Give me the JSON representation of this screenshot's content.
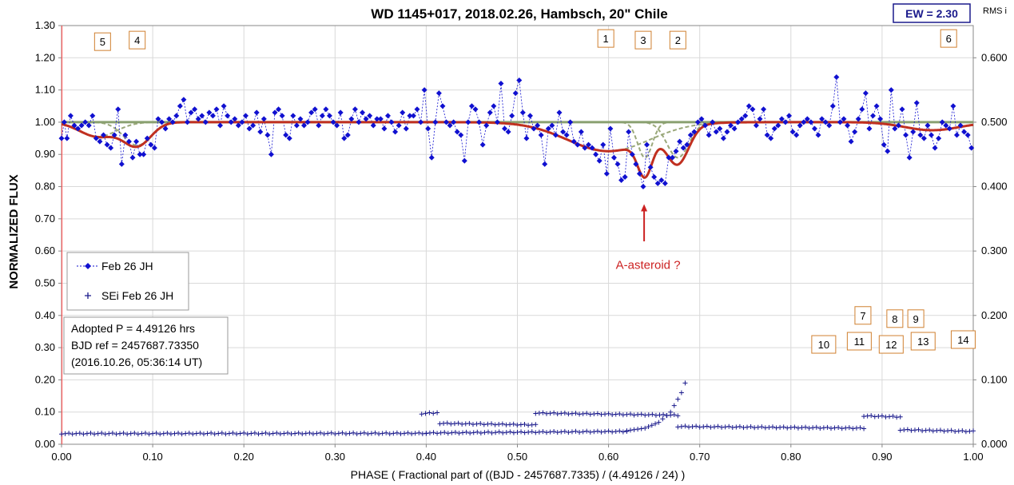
{
  "chart_data": {
    "type": "scatter",
    "title": "WD 1145+017, 2018.02.26, Hambsch, 20\" Chile",
    "ew_label": "EW =  2.30",
    "rms_label": "RMS i",
    "xlabel": "PHASE  ( Fractional part of ((BJD - 2457687.7335)  / (4.49126  / 24) )",
    "ylabel": "NORMALIZED  FLUX",
    "xlim": [
      0,
      1
    ],
    "ylim": [
      0,
      1.3
    ],
    "y2lim": [
      0,
      0.65
    ],
    "x_ticks": [
      "0.00",
      "0.10",
      "0.20",
      "0.30",
      "0.40",
      "0.50",
      "0.60",
      "0.70",
      "0.80",
      "0.90",
      "1.00"
    ],
    "y_ticks": [
      "0.00",
      "0.10",
      "0.20",
      "0.30",
      "0.40",
      "0.50",
      "0.60",
      "0.70",
      "0.80",
      "0.90",
      "1.00",
      "1.10",
      "1.20",
      "1.30"
    ],
    "y2_ticks": [
      "0.000",
      "0.100",
      "0.200",
      "0.300",
      "0.400",
      "0.500",
      "0.600"
    ],
    "grid": true,
    "legend_placement": "middle-left",
    "legend": [
      {
        "name": "Feb 26 JH",
        "marker": "diamond",
        "color": "#1010d0"
      },
      {
        "name": "SEi Feb 26 JH",
        "marker": "plus",
        "color": "#1a1a8c"
      }
    ],
    "info_lines": [
      "Adopted P = 4.49126 hrs",
      "BJD ref = 2457687.73350",
      "(2016.10.26, 05:36:14 UT)"
    ],
    "annotation": {
      "text": "A-asteroid ?",
      "x": 0.639,
      "y": 0.8,
      "color": "#cc2222"
    },
    "dip_labels": [
      {
        "label": "5",
        "x": 0.045,
        "y": 1.25
      },
      {
        "label": "4",
        "x": 0.083,
        "y": 1.255
      },
      {
        "label": "1",
        "x": 0.597,
        "y": 1.26
      },
      {
        "label": "3",
        "x": 0.638,
        "y": 1.255
      },
      {
        "label": "2",
        "x": 0.676,
        "y": 1.255
      },
      {
        "label": "6",
        "x": 0.973,
        "y": 1.26
      },
      {
        "label": "7",
        "x": 0.879,
        "y": 0.4
      },
      {
        "label": "8",
        "x": 0.914,
        "y": 0.39
      },
      {
        "label": "9",
        "x": 0.937,
        "y": 0.39
      },
      {
        "label": "10",
        "x": 0.836,
        "y": 0.31
      },
      {
        "label": "11",
        "x": 0.875,
        "y": 0.32
      },
      {
        "label": "12",
        "x": 0.91,
        "y": 0.31
      },
      {
        "label": "13",
        "x": 0.945,
        "y": 0.32
      },
      {
        "label": "14",
        "x": 0.989,
        "y": 0.325
      }
    ],
    "colors": {
      "flux": "#1010d0",
      "sei": "#1a1a8c",
      "model": "#c03020",
      "components": "#9aa87a",
      "baseline": "#8aa070",
      "annotation": "#cc2222",
      "label_border": "#d08030"
    },
    "flux_series": {
      "name": "Feb 26 JH",
      "points": [
        [
          0.0,
          0.95
        ],
        [
          0.003,
          1.0
        ],
        [
          0.006,
          0.95
        ],
        [
          0.01,
          1.02
        ],
        [
          0.014,
          0.99
        ],
        [
          0.018,
          0.98
        ],
        [
          0.022,
          0.99
        ],
        [
          0.026,
          1.0
        ],
        [
          0.03,
          0.99
        ],
        [
          0.034,
          1.02
        ],
        [
          0.038,
          0.95
        ],
        [
          0.042,
          0.94
        ],
        [
          0.046,
          0.96
        ],
        [
          0.05,
          0.93
        ],
        [
          0.054,
          0.92
        ],
        [
          0.058,
          0.96
        ],
        [
          0.062,
          1.04
        ],
        [
          0.066,
          0.87
        ],
        [
          0.07,
          0.96
        ],
        [
          0.074,
          0.94
        ],
        [
          0.078,
          0.89
        ],
        [
          0.082,
          0.94
        ],
        [
          0.086,
          0.9
        ],
        [
          0.09,
          0.9
        ],
        [
          0.094,
          0.95
        ],
        [
          0.098,
          0.93
        ],
        [
          0.102,
          0.92
        ],
        [
          0.106,
          1.01
        ],
        [
          0.11,
          1.0
        ],
        [
          0.114,
          0.98
        ],
        [
          0.118,
          1.01
        ],
        [
          0.122,
          1.0
        ],
        [
          0.126,
          1.02
        ],
        [
          0.13,
          1.05
        ],
        [
          0.134,
          1.07
        ],
        [
          0.138,
          1.0
        ],
        [
          0.142,
          1.03
        ],
        [
          0.146,
          1.04
        ],
        [
          0.15,
          1.01
        ],
        [
          0.154,
          1.02
        ],
        [
          0.158,
          1.0
        ],
        [
          0.162,
          1.03
        ],
        [
          0.166,
          1.02
        ],
        [
          0.17,
          1.04
        ],
        [
          0.174,
          0.99
        ],
        [
          0.178,
          1.05
        ],
        [
          0.182,
          1.02
        ],
        [
          0.186,
          1.0
        ],
        [
          0.19,
          1.01
        ],
        [
          0.194,
          0.99
        ],
        [
          0.198,
          1.0
        ],
        [
          0.202,
          1.02
        ],
        [
          0.206,
          0.98
        ],
        [
          0.21,
          0.99
        ],
        [
          0.214,
          1.03
        ],
        [
          0.218,
          0.97
        ],
        [
          0.222,
          1.01
        ],
        [
          0.226,
          0.96
        ],
        [
          0.23,
          0.9
        ],
        [
          0.234,
          1.03
        ],
        [
          0.238,
          1.04
        ],
        [
          0.242,
          1.02
        ],
        [
          0.246,
          0.96
        ],
        [
          0.25,
          0.95
        ],
        [
          0.254,
          1.02
        ],
        [
          0.258,
          0.99
        ],
        [
          0.262,
          1.01
        ],
        [
          0.266,
          0.99
        ],
        [
          0.27,
          1.0
        ],
        [
          0.274,
          1.03
        ],
        [
          0.278,
          1.04
        ],
        [
          0.282,
          0.99
        ],
        [
          0.286,
          1.02
        ],
        [
          0.29,
          1.04
        ],
        [
          0.294,
          1.02
        ],
        [
          0.298,
          1.0
        ],
        [
          0.302,
          0.99
        ],
        [
          0.306,
          1.03
        ],
        [
          0.31,
          0.95
        ],
        [
          0.314,
          0.96
        ],
        [
          0.318,
          1.01
        ],
        [
          0.322,
          1.04
        ],
        [
          0.326,
          1.0
        ],
        [
          0.33,
          1.03
        ],
        [
          0.334,
          1.01
        ],
        [
          0.338,
          1.02
        ],
        [
          0.342,
          0.99
        ],
        [
          0.346,
          1.01
        ],
        [
          0.35,
          1.01
        ],
        [
          0.354,
          0.98
        ],
        [
          0.358,
          1.02
        ],
        [
          0.362,
          1.0
        ],
        [
          0.366,
          0.97
        ],
        [
          0.37,
          0.99
        ],
        [
          0.374,
          1.03
        ],
        [
          0.378,
          0.98
        ],
        [
          0.382,
          1.02
        ],
        [
          0.386,
          1.02
        ],
        [
          0.39,
          1.04
        ],
        [
          0.394,
          1.0
        ],
        [
          0.398,
          1.1
        ],
        [
          0.402,
          0.98
        ],
        [
          0.406,
          0.89
        ],
        [
          0.41,
          1.0
        ],
        [
          0.414,
          1.09
        ],
        [
          0.418,
          1.05
        ],
        [
          0.422,
          1.0
        ],
        [
          0.426,
          0.99
        ],
        [
          0.43,
          1.0
        ],
        [
          0.434,
          0.97
        ],
        [
          0.438,
          0.96
        ],
        [
          0.442,
          0.88
        ],
        [
          0.446,
          1.0
        ],
        [
          0.45,
          1.05
        ],
        [
          0.454,
          1.04
        ],
        [
          0.458,
          1.0
        ],
        [
          0.462,
          0.93
        ],
        [
          0.466,
          0.99
        ],
        [
          0.47,
          1.03
        ],
        [
          0.474,
          1.05
        ],
        [
          0.478,
          1.0
        ],
        [
          0.482,
          1.12
        ],
        [
          0.486,
          0.98
        ],
        [
          0.49,
          0.97
        ],
        [
          0.494,
          1.02
        ],
        [
          0.498,
          1.09
        ],
        [
          0.502,
          1.13
        ],
        [
          0.506,
          1.03
        ],
        [
          0.51,
          0.95
        ],
        [
          0.514,
          1.02
        ],
        [
          0.518,
          0.98
        ],
        [
          0.522,
          0.99
        ],
        [
          0.526,
          0.96
        ],
        [
          0.53,
          0.87
        ],
        [
          0.534,
          0.98
        ],
        [
          0.538,
          0.99
        ],
        [
          0.542,
          0.96
        ],
        [
          0.546,
          1.03
        ],
        [
          0.55,
          0.97
        ],
        [
          0.554,
          0.96
        ],
        [
          0.558,
          1.0
        ],
        [
          0.562,
          0.94
        ],
        [
          0.566,
          0.93
        ],
        [
          0.57,
          0.97
        ],
        [
          0.574,
          0.92
        ],
        [
          0.578,
          0.93
        ],
        [
          0.582,
          0.92
        ],
        [
          0.586,
          0.9
        ],
        [
          0.59,
          0.88
        ],
        [
          0.594,
          0.93
        ],
        [
          0.598,
          0.84
        ],
        [
          0.602,
          0.98
        ],
        [
          0.606,
          0.89
        ],
        [
          0.61,
          0.87
        ],
        [
          0.614,
          0.82
        ],
        [
          0.618,
          0.83
        ],
        [
          0.622,
          0.97
        ],
        [
          0.626,
          0.9
        ],
        [
          0.63,
          0.87
        ],
        [
          0.634,
          0.84
        ],
        [
          0.638,
          0.8
        ],
        [
          0.642,
          0.93
        ],
        [
          0.646,
          0.86
        ],
        [
          0.65,
          0.83
        ],
        [
          0.654,
          0.81
        ],
        [
          0.658,
          0.82
        ],
        [
          0.662,
          0.81
        ],
        [
          0.666,
          0.89
        ],
        [
          0.67,
          0.89
        ],
        [
          0.674,
          0.91
        ],
        [
          0.678,
          0.94
        ],
        [
          0.682,
          0.92
        ],
        [
          0.686,
          0.93
        ],
        [
          0.69,
          0.96
        ],
        [
          0.694,
          0.97
        ],
        [
          0.698,
          1.0
        ],
        [
          0.702,
          1.01
        ],
        [
          0.706,
          0.99
        ],
        [
          0.71,
          0.96
        ],
        [
          0.714,
          1.0
        ],
        [
          0.718,
          0.97
        ],
        [
          0.722,
          0.98
        ],
        [
          0.726,
          0.95
        ],
        [
          0.73,
          0.97
        ],
        [
          0.734,
          0.99
        ],
        [
          0.738,
          0.98
        ],
        [
          0.742,
          1.0
        ],
        [
          0.746,
          1.01
        ],
        [
          0.75,
          1.02
        ],
        [
          0.754,
          1.05
        ],
        [
          0.758,
          1.04
        ],
        [
          0.762,
          0.99
        ],
        [
          0.766,
          1.01
        ],
        [
          0.77,
          1.04
        ],
        [
          0.774,
          0.96
        ],
        [
          0.778,
          0.95
        ],
        [
          0.782,
          0.98
        ],
        [
          0.786,
          0.99
        ],
        [
          0.79,
          1.01
        ],
        [
          0.794,
          1.0
        ],
        [
          0.798,
          1.02
        ],
        [
          0.802,
          0.97
        ],
        [
          0.806,
          0.96
        ],
        [
          0.81,
          0.99
        ],
        [
          0.814,
          1.0
        ],
        [
          0.818,
          1.01
        ],
        [
          0.822,
          1.0
        ],
        [
          0.826,
          0.98
        ],
        [
          0.83,
          0.96
        ],
        [
          0.834,
          1.01
        ],
        [
          0.838,
          1.0
        ],
        [
          0.842,
          0.99
        ],
        [
          0.846,
          1.05
        ],
        [
          0.85,
          1.14
        ],
        [
          0.854,
          1.0
        ],
        [
          0.858,
          1.01
        ],
        [
          0.862,
          0.99
        ],
        [
          0.866,
          0.94
        ],
        [
          0.87,
          0.97
        ],
        [
          0.874,
          1.01
        ],
        [
          0.878,
          1.04
        ],
        [
          0.882,
          1.09
        ],
        [
          0.886,
          0.98
        ],
        [
          0.89,
          1.02
        ],
        [
          0.894,
          1.05
        ],
        [
          0.898,
          1.01
        ],
        [
          0.902,
          0.93
        ],
        [
          0.906,
          0.91
        ],
        [
          0.91,
          1.1
        ],
        [
          0.914,
          0.98
        ],
        [
          0.918,
          0.99
        ],
        [
          0.922,
          1.04
        ],
        [
          0.926,
          0.96
        ],
        [
          0.93,
          0.89
        ],
        [
          0.934,
          0.97
        ],
        [
          0.938,
          1.06
        ],
        [
          0.942,
          0.96
        ],
        [
          0.946,
          0.95
        ],
        [
          0.95,
          0.99
        ],
        [
          0.954,
          0.96
        ],
        [
          0.958,
          0.92
        ],
        [
          0.962,
          0.95
        ],
        [
          0.966,
          1.0
        ],
        [
          0.97,
          0.99
        ],
        [
          0.974,
          0.98
        ],
        [
          0.978,
          1.05
        ],
        [
          0.982,
          0.96
        ],
        [
          0.986,
          0.99
        ],
        [
          0.99,
          0.97
        ],
        [
          0.994,
          0.96
        ],
        [
          0.998,
          0.92
        ]
      ]
    },
    "sei_series": {
      "name": "SEi Feb 26 JH",
      "segments": [
        {
          "x0": 0.0,
          "x1": 0.4,
          "y0": 0.033,
          "y1": 0.034
        },
        {
          "x0": 0.4,
          "x1": 0.62,
          "y0": 0.035,
          "y1": 0.04
        },
        {
          "x0": 0.62,
          "x1": 0.684,
          "curve": [
            [
              0.62,
              0.042
            ],
            [
              0.64,
              0.05
            ],
            [
              0.655,
              0.068
            ],
            [
              0.668,
              0.1
            ],
            [
              0.676,
              0.14
            ],
            [
              0.68,
              0.16
            ],
            [
              0.684,
              0.19
            ]
          ]
        },
        {
          "x0": 0.395,
          "x1": 0.412,
          "y0": 0.095,
          "y1": 0.098
        },
        {
          "x0": 0.415,
          "x1": 0.52,
          "y0": 0.065,
          "y1": 0.06
        },
        {
          "x0": 0.52,
          "x1": 0.676,
          "y0": 0.097,
          "y1": 0.09
        },
        {
          "x0": 0.676,
          "x1": 0.88,
          "y0": 0.055,
          "y1": 0.05
        },
        {
          "x0": 0.88,
          "x1": 0.92,
          "y0": 0.088,
          "y1": 0.085
        },
        {
          "x0": 0.92,
          "x1": 1.0,
          "y0": 0.045,
          "y1": 0.04
        }
      ]
    },
    "model": {
      "name": "model",
      "baseline": 1.0,
      "dips": [
        {
          "center": 0.04,
          "depth": 0.045,
          "width": 0.02
        },
        {
          "center": 0.083,
          "depth": 0.072,
          "width": 0.015
        },
        {
          "center": 0.6,
          "depth": 0.09,
          "width": 0.045
        },
        {
          "center": 0.64,
          "depth": 0.11,
          "width": 0.008
        },
        {
          "center": 0.676,
          "depth": 0.11,
          "width": 0.012
        },
        {
          "center": 0.955,
          "depth": 0.025,
          "width": 0.03
        }
      ]
    }
  }
}
